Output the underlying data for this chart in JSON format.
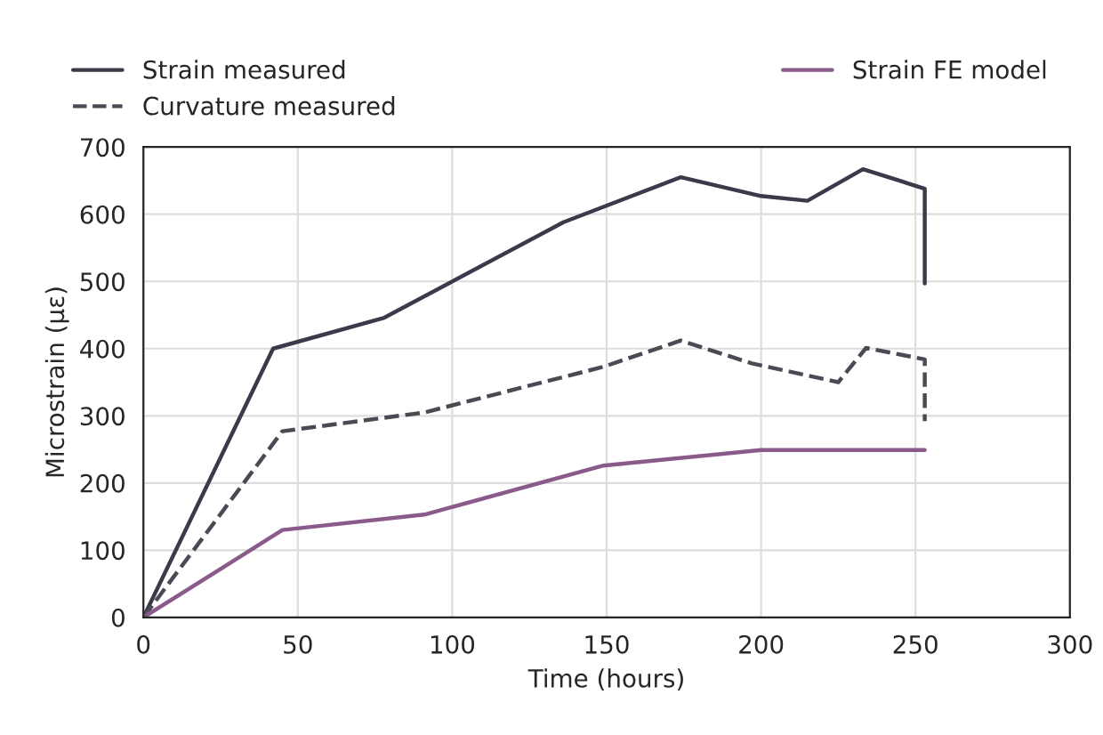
{
  "chart_data": {
    "type": "line",
    "xlabel": "Time (hours)",
    "ylabel": "Microstrain (με)",
    "xlim": [
      0,
      300
    ],
    "xticks": [
      0,
      50,
      100,
      150,
      200,
      250,
      300
    ],
    "ylim": [
      0,
      700
    ],
    "yticks": [
      0,
      100,
      200,
      300,
      400,
      500,
      600,
      700
    ],
    "grid": true,
    "legend": "top",
    "marker": "none",
    "series": [
      {
        "name": "Strain measured",
        "color": "#3a3a4a",
        "line_style": "solid",
        "x": [
          0,
          42,
          78,
          136,
          174,
          200,
          215,
          233,
          253,
          253
        ],
        "values": [
          0,
          400,
          446,
          588,
          655,
          627,
          620,
          667,
          638,
          497
        ]
      },
      {
        "name": "Curvature measured",
        "color": "#4a4a55",
        "line_style": "dashed",
        "x": [
          0,
          45,
          91,
          149,
          174,
          197,
          225,
          234,
          253,
          253
        ],
        "values": [
          0,
          277,
          305,
          373,
          412,
          378,
          350,
          401,
          384,
          292
        ]
      },
      {
        "name": "Strain FE model",
        "color": "#8a5a8a",
        "line_style": "solid",
        "x": [
          0,
          45,
          91,
          149,
          200,
          253
        ],
        "values": [
          0,
          130,
          153,
          226,
          249,
          249
        ]
      }
    ]
  }
}
